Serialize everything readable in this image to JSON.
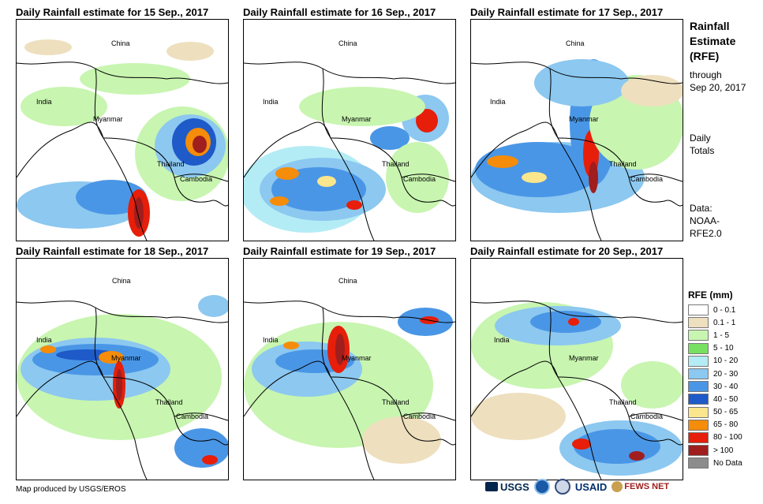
{
  "panels": [
    {
      "title": "Daily Rainfall estimate for 15 Sep., 2017"
    },
    {
      "title": "Daily Rainfall estimate for 16 Sep., 2017"
    },
    {
      "title": "Daily Rainfall estimate for 17 Sep., 2017"
    },
    {
      "title": "Daily Rainfall estimate for 18 Sep., 2017"
    },
    {
      "title": "Daily Rainfall estimate for 19 Sep., 2017"
    },
    {
      "title": "Daily Rainfall estimate for 20 Sep., 2017"
    }
  ],
  "country_labels": {
    "china": "China",
    "india": "India",
    "myanmar": "Myanmar",
    "thailand": "Thailand",
    "cambodia": "Cambodia"
  },
  "sidebar": {
    "title_line1": "Rainfall",
    "title_line2": "Estimate",
    "title_line3": "(RFE)",
    "through": "through",
    "date": "Sep 20, 2017",
    "daily": "Daily",
    "totals": "Totals",
    "data_label": "Data:",
    "data_src1": "NOAA-",
    "data_src2": "RFE2.0"
  },
  "legend": {
    "title": "RFE (mm)",
    "items": [
      {
        "label": "0 - 0.1",
        "color": "#ffffff"
      },
      {
        "label": "0.1 - 1",
        "color": "#eedfbe"
      },
      {
        "label": "1 - 5",
        "color": "#c8f5b0"
      },
      {
        "label": "5 - 10",
        "color": "#78e060"
      },
      {
        "label": "10 - 20",
        "color": "#b4ecf5"
      },
      {
        "label": "20 - 30",
        "color": "#8cc8f0"
      },
      {
        "label": "30 - 40",
        "color": "#4a96e6"
      },
      {
        "label": "40 - 50",
        "color": "#1e5ac8"
      },
      {
        "label": "50 - 65",
        "color": "#fae68c"
      },
      {
        "label": "65 - 80",
        "color": "#f58c0a"
      },
      {
        "label": "80 - 100",
        "color": "#e61e0a"
      },
      {
        "label": "> 100",
        "color": "#a01e1e"
      },
      {
        "label": "No Data",
        "color": "#8c8c8c"
      }
    ]
  },
  "credit": "Map produced by USGS/EROS",
  "logos": {
    "usgs": "USGS",
    "usaid": "USAID",
    "fewsnet": "FEWS NET"
  }
}
